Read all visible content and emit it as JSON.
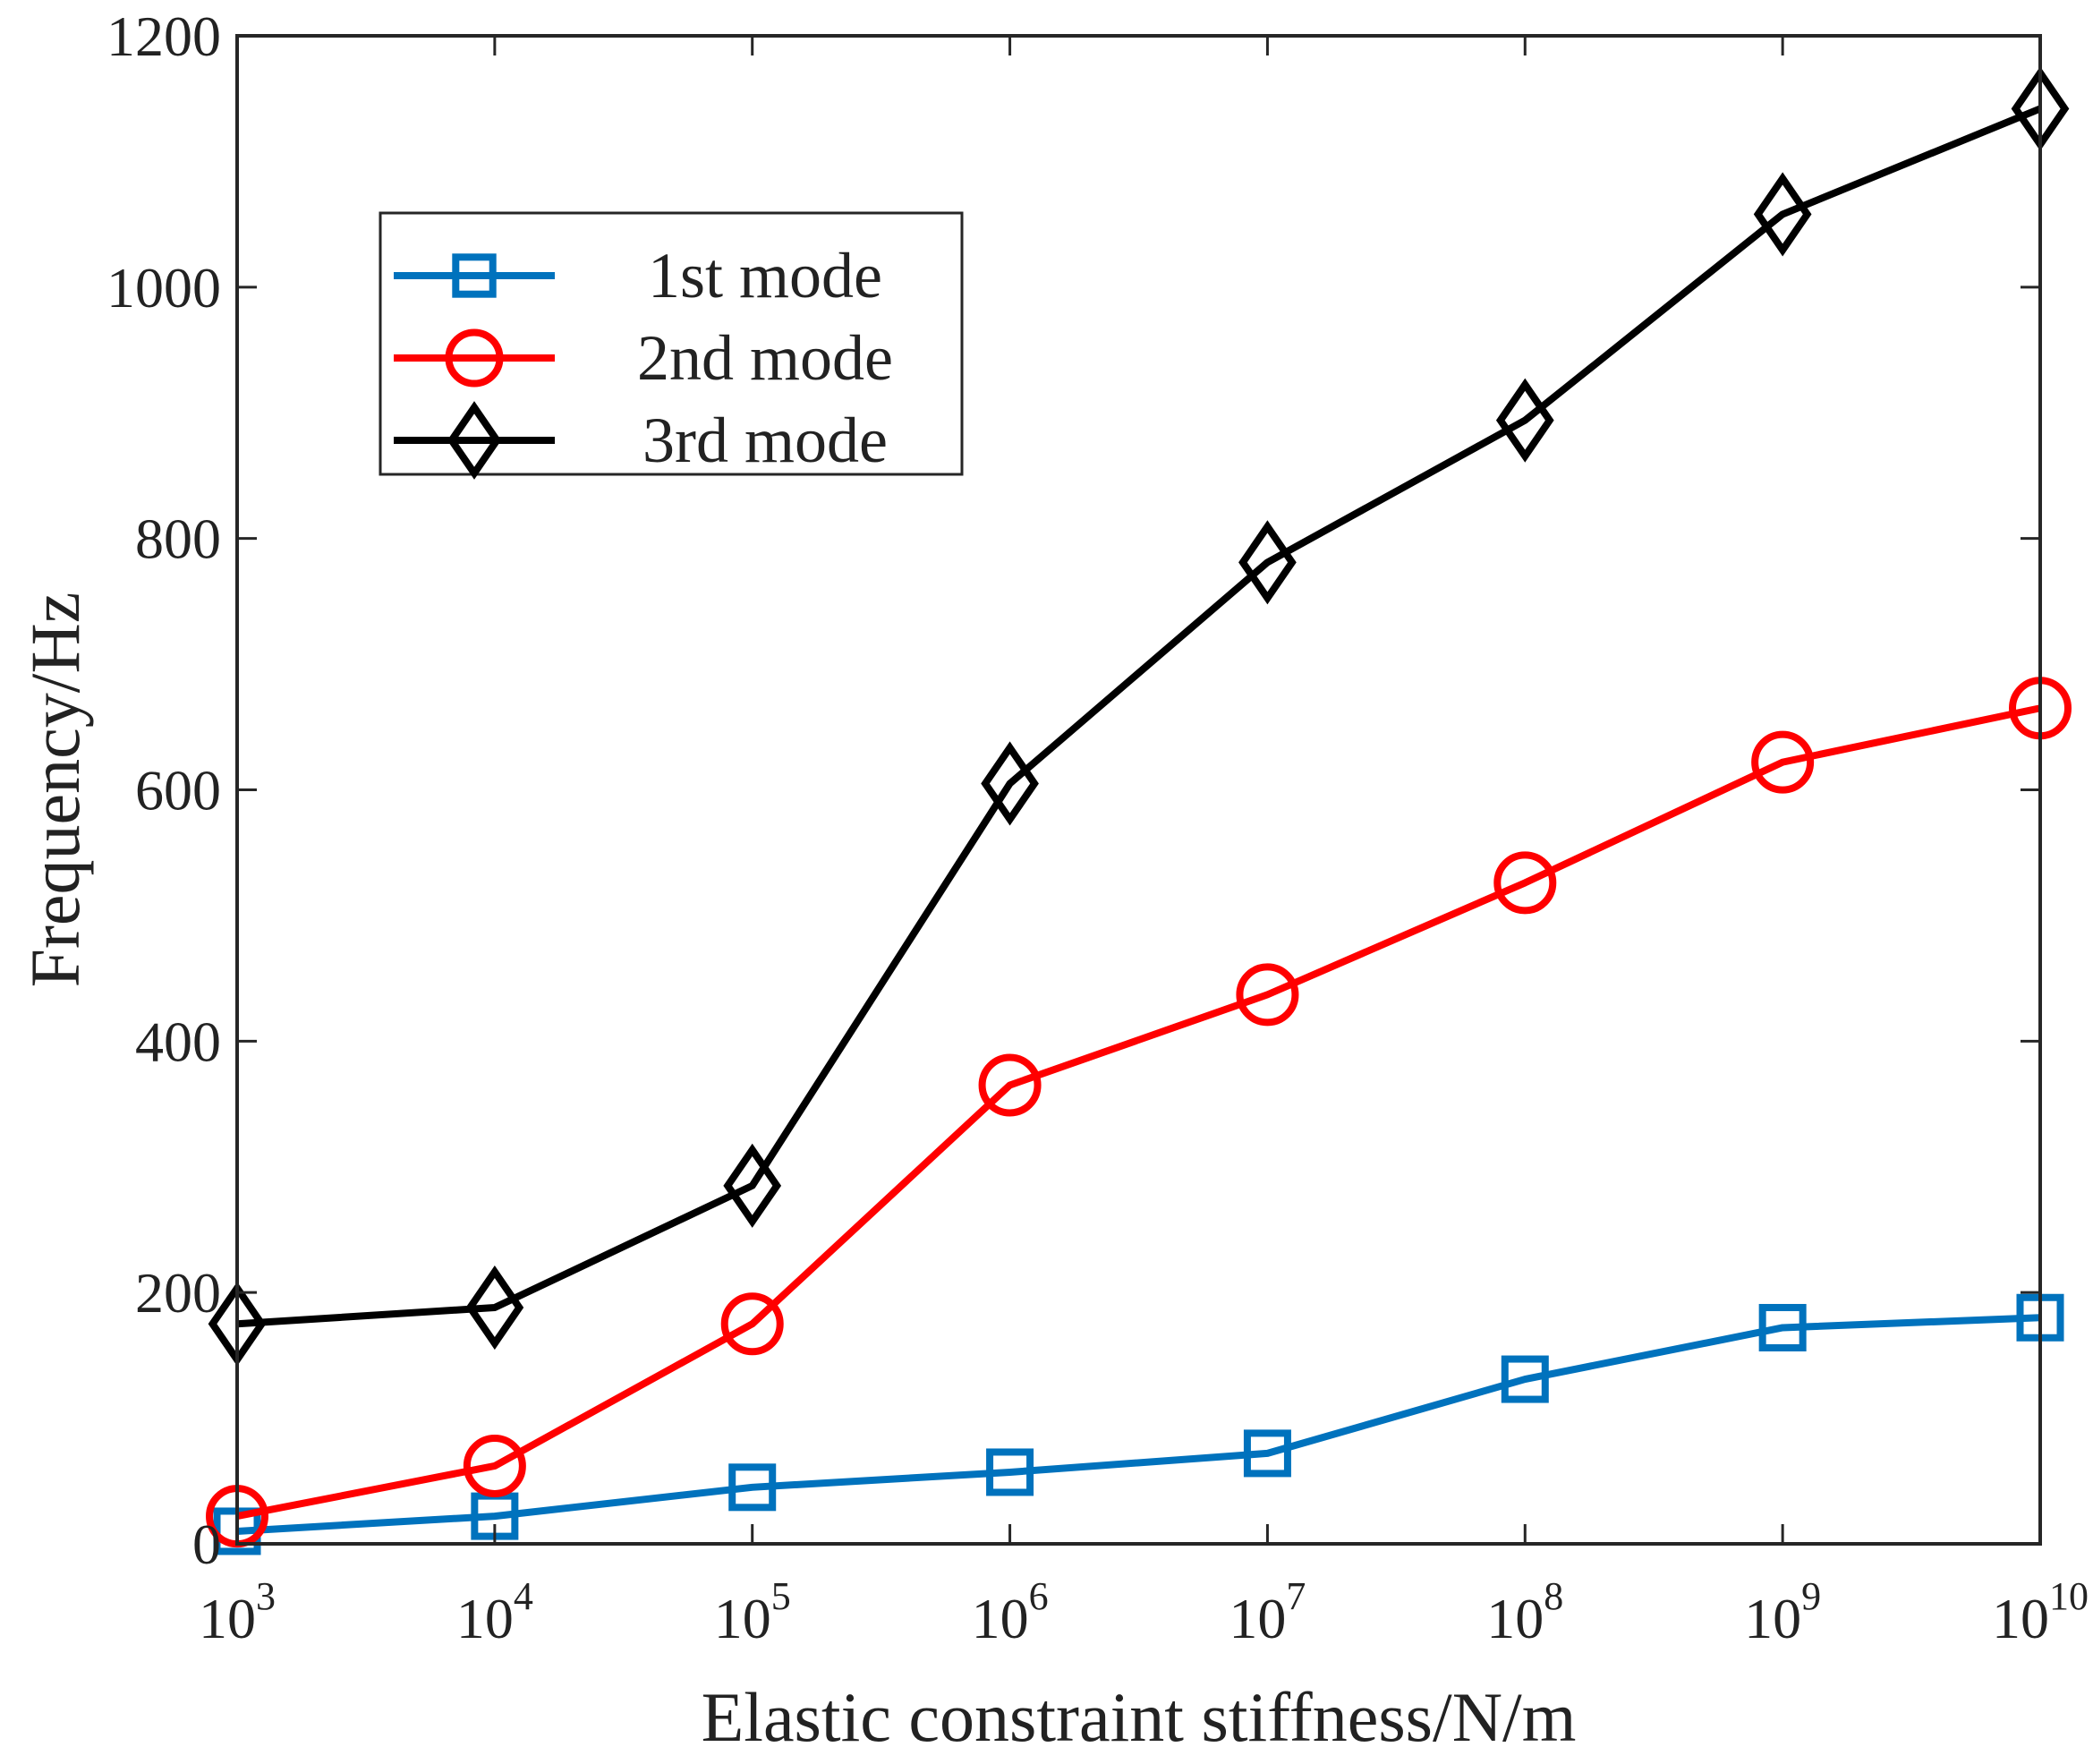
{
  "chart_data": {
    "type": "line",
    "title": "",
    "xlabel": "Elastic constraint stiffness/N/m",
    "ylabel": "Frequency/Hz",
    "x_scale": "log",
    "x_base": "10",
    "x_exponents": [
      "3",
      "4",
      "5",
      "6",
      "7",
      "8",
      "9",
      "10"
    ],
    "xlim": [
      1000,
      10000000000
    ],
    "ylim": [
      0,
      1200
    ],
    "yticks": [
      "0",
      "200",
      "400",
      "600",
      "800",
      "1000",
      "1200"
    ],
    "grid": false,
    "legend_position": "upper-left",
    "series": [
      {
        "name": "1st mode",
        "color": "#0072BD",
        "marker": "square",
        "values": [
          10,
          22,
          45,
          57,
          72,
          131,
          172,
          180
        ]
      },
      {
        "name": "2nd mode",
        "color": "#FF0000",
        "marker": "circle",
        "values": [
          22,
          62,
          175,
          365,
          437,
          526,
          622,
          665
        ]
      },
      {
        "name": "3rd mode",
        "color": "#000000",
        "marker": "diamond",
        "values": [
          175,
          188,
          285,
          605,
          781,
          894,
          1058,
          1142
        ]
      }
    ]
  }
}
